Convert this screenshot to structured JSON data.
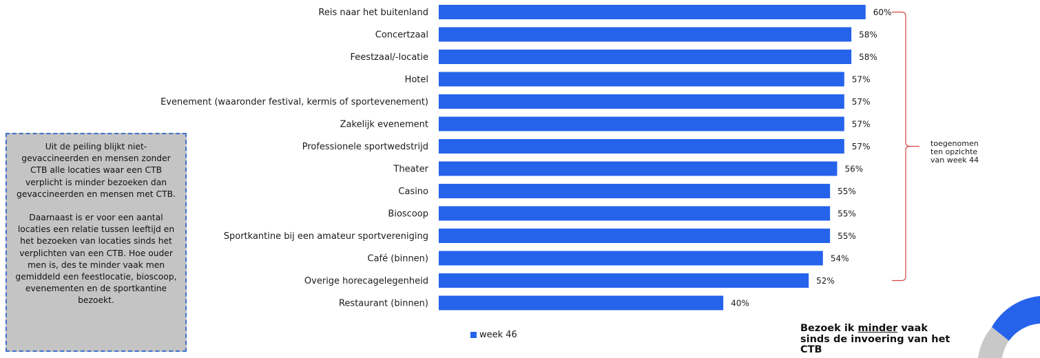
{
  "chart_data": {
    "type": "bar",
    "orientation": "horizontal",
    "categories": [
      "Reis naar het buitenland",
      "Concertzaal",
      "Feestzaal/-locatie",
      "Hotel",
      "Evenement (waaronder festival, kermis of sportevenement)",
      "Zakelijk evenement",
      "Professionele sportwedstrijd",
      "Theater",
      "Casino",
      "Bioscoop",
      "Sportkantine bij een amateur sportvereniging",
      "Café (binnen)",
      "Overige horecagelegenheid",
      "Restaurant (binnen)"
    ],
    "series": [
      {
        "name": "week 46",
        "values": [
          60,
          58,
          58,
          57,
          57,
          57,
          57,
          56,
          55,
          55,
          55,
          54,
          52,
          40
        ]
      }
    ],
    "value_labels": [
      "60%",
      "58%",
      "58%",
      "57%",
      "57%",
      "57%",
      "57%",
      "56%",
      "55%",
      "55%",
      "55%",
      "54%",
      "52%",
      "40%"
    ],
    "xlim": [
      0,
      100
    ],
    "grid": false,
    "legend_position": "bottom-left",
    "bar_color": "#2563eb"
  },
  "annotations": {
    "bracket_note": "toegenomen ten opzichte van week 44",
    "bracket_color": "#d64545"
  },
  "infobox": {
    "paragraph1": "Uit de peiling blijkt niet-gevaccineerden en mensen zonder CTB alle locaties waar een CTB verplicht is minder bezoeken dan gevaccineerden en mensen met CTB.",
    "paragraph2": "Daarnaast is er voor een aantal locaties een relatie tussen leeftijd en het bezoeken van locaties sinds het verplichten van een CTB. Hoe ouder men is, des te minder vaak men gemiddeld een feestlocatie, bioscoop, evenementen en de sportkantine bezoekt."
  },
  "bottom_title": {
    "before": "Bezoek ik ",
    "underlined": "minder",
    "after": " vaak sinds de invoering van het CTB"
  },
  "colors": {
    "corner_blue": "#2563eb",
    "corner_gray": "#c8c8c8"
  }
}
